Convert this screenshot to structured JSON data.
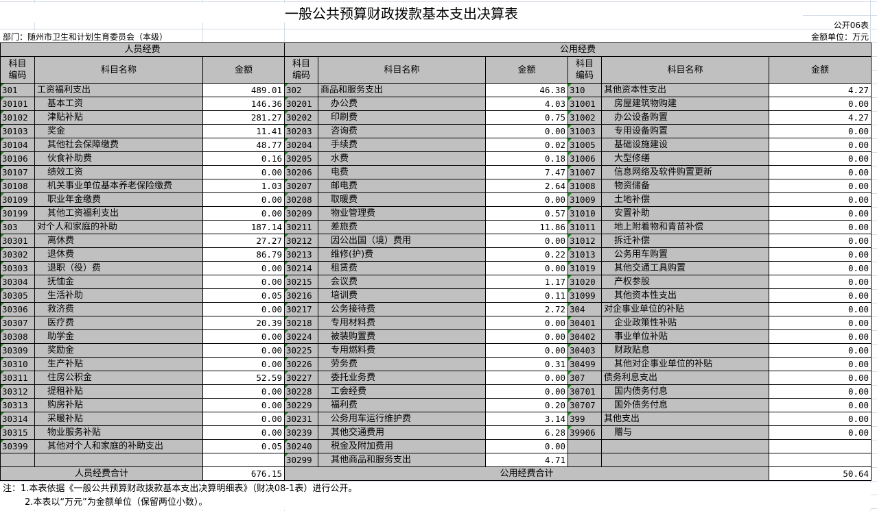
{
  "title": "一般公共预算财政拨款基本支出决算表",
  "form_no": "公开06表",
  "department": "部门：随州市卫生和计划生育委员会（本级）",
  "unit": "金额单位：万元",
  "sections": {
    "personnel": "人员经费",
    "public": "公用经费"
  },
  "headers": {
    "code": "科目\n编码",
    "name": "科目名称",
    "amount": "金额"
  },
  "personnel_rows": [
    [
      "301",
      "工资福利支出",
      "489.01",
      0
    ],
    [
      "30101",
      "基本工资",
      "146.36",
      1
    ],
    [
      "30102",
      "津贴补贴",
      "281.27",
      1
    ],
    [
      "30103",
      "奖金",
      "11.41",
      1
    ],
    [
      "30104",
      "其他社会保障缴费",
      "48.77",
      1
    ],
    [
      "30106",
      "伙食补助费",
      "0.16",
      1
    ],
    [
      "30107",
      "绩效工资",
      "0.00",
      1
    ],
    [
      "30108",
      "机关事业单位基本养老保险缴费",
      "1.03",
      1
    ],
    [
      "30109",
      "职业年金缴费",
      "0.00",
      1
    ],
    [
      "30199",
      "其他工资福利支出",
      "0.00",
      1
    ],
    [
      "303",
      "对个人和家庭的补助",
      "187.14",
      0
    ],
    [
      "30301",
      "离休费",
      "27.27",
      1
    ],
    [
      "30302",
      "退休费",
      "86.79",
      1
    ],
    [
      "30303",
      "退职（役）费",
      "0.00",
      1
    ],
    [
      "30304",
      "抚恤金",
      "0.00",
      1
    ],
    [
      "30305",
      "生活补助",
      "0.05",
      1
    ],
    [
      "30306",
      "救济费",
      "0.00",
      1
    ],
    [
      "30307",
      "医疗费",
      "20.39",
      1
    ],
    [
      "30308",
      "助学金",
      "0.00",
      1
    ],
    [
      "30309",
      "奖励金",
      "0.00",
      1
    ],
    [
      "30310",
      "生产补贴",
      "0.00",
      1
    ],
    [
      "30311",
      "住房公积金",
      "52.59",
      1
    ],
    [
      "30312",
      "提租补贴",
      "0.00",
      1
    ],
    [
      "30313",
      "购房补贴",
      "0.00",
      1
    ],
    [
      "30314",
      "采暖补贴",
      "0.00",
      1
    ],
    [
      "30315",
      "物业服务补贴",
      "0.00",
      1
    ],
    [
      "30399",
      "其他对个人和家庭的补助支出",
      "0.05",
      1
    ],
    [
      "",
      "",
      "",
      1
    ]
  ],
  "public_rows_a": [
    [
      "302",
      "商品和服务支出",
      "46.38",
      0
    ],
    [
      "30201",
      "办公费",
      "4.03",
      1
    ],
    [
      "30202",
      "印刷费",
      "0.75",
      1
    ],
    [
      "30203",
      "咨询费",
      "0.00",
      1
    ],
    [
      "30204",
      "手续费",
      "0.02",
      1
    ],
    [
      "30205",
      "水费",
      "0.18",
      1
    ],
    [
      "30206",
      "电费",
      "7.47",
      1
    ],
    [
      "30207",
      "邮电费",
      "2.64",
      1
    ],
    [
      "30208",
      "取暖费",
      "0.00",
      1
    ],
    [
      "30209",
      "物业管理费",
      "0.57",
      1
    ],
    [
      "30211",
      "差旅费",
      "11.86",
      1
    ],
    [
      "30212",
      "因公出国（境）费用",
      "0.00",
      1
    ],
    [
      "30213",
      "维修(护)费",
      "0.22",
      1
    ],
    [
      "30214",
      "租赁费",
      "0.00",
      1
    ],
    [
      "30215",
      "会议费",
      "1.17",
      1
    ],
    [
      "30216",
      "培训费",
      "0.11",
      1
    ],
    [
      "30217",
      "公务接待费",
      "2.72",
      1
    ],
    [
      "30218",
      "专用材料费",
      "0.00",
      1
    ],
    [
      "30224",
      "被装购置费",
      "0.00",
      1
    ],
    [
      "30225",
      "专用燃料费",
      "0.00",
      1
    ],
    [
      "30226",
      "劳务费",
      "0.31",
      1
    ],
    [
      "30227",
      "委托业务费",
      "0.00",
      1
    ],
    [
      "30228",
      "工会经费",
      "0.00",
      1
    ],
    [
      "30229",
      "福利费",
      "0.20",
      1
    ],
    [
      "30231",
      "公务用车运行维护费",
      "3.14",
      1
    ],
    [
      "30239",
      "其他交通费用",
      "6.28",
      1
    ],
    [
      "30240",
      "税金及附加费用",
      "0.00",
      1
    ],
    [
      "30299",
      "其他商品和服务支出",
      "4.71",
      1
    ]
  ],
  "public_rows_b": [
    [
      "310",
      "其他资本性支出",
      "4.27",
      0
    ],
    [
      "31001",
      "房屋建筑物购建",
      "0.00",
      1
    ],
    [
      "31002",
      "办公设备购置",
      "4.27",
      1
    ],
    [
      "31003",
      "专用设备购置",
      "0.00",
      1
    ],
    [
      "31005",
      "基础设施建设",
      "0.00",
      1
    ],
    [
      "31006",
      "大型修缮",
      "0.00",
      1
    ],
    [
      "31007",
      "信息网络及软件购置更新",
      "0.00",
      1
    ],
    [
      "31008",
      "物资储备",
      "0.00",
      1
    ],
    [
      "31009",
      "土地补偿",
      "0.00",
      1
    ],
    [
      "31010",
      "安置补助",
      "0.00",
      1
    ],
    [
      "31011",
      "地上附着物和青苗补偿",
      "0.00",
      1
    ],
    [
      "31012",
      "拆迁补偿",
      "0.00",
      1
    ],
    [
      "31013",
      "公务用车购置",
      "0.00",
      1
    ],
    [
      "31019",
      "其他交通工具购置",
      "0.00",
      1
    ],
    [
      "31020",
      "产权参股",
      "0.00",
      1
    ],
    [
      "31099",
      "其他资本性支出",
      "0.00",
      1
    ],
    [
      "304",
      "对企事业单位的补贴",
      "0.00",
      0
    ],
    [
      "30401",
      "企业政策性补贴",
      "0.00",
      1
    ],
    [
      "30402",
      "事业单位补贴",
      "0.00",
      1
    ],
    [
      "30403",
      "财政贴息",
      "0.00",
      1
    ],
    [
      "30499",
      "其他对企事业单位的补贴",
      "0.00",
      1
    ],
    [
      "307",
      "债务利息支出",
      "0.00",
      0
    ],
    [
      "30701",
      "国内债务付息",
      "0.00",
      1
    ],
    [
      "30707",
      "国外债务付息",
      "0.00",
      1
    ],
    [
      "399",
      "其他支出",
      "0.00",
      0
    ],
    [
      "39906",
      "赠与",
      "0.00",
      1
    ],
    [
      "",
      "",
      "",
      1
    ],
    [
      "",
      "",
      "",
      1
    ]
  ],
  "totals": {
    "personnel_label": "人员经费合计",
    "personnel_value": "676.15",
    "public_label": "公用经费合计",
    "public_value": "50.64"
  },
  "notes": [
    "注：1.本表依据《一般公共预算财政拨款基本支出决算明细表》（财决08-1表）进行公开。",
    "2.本表以“万元”为金额单位（保留两位小数）。"
  ]
}
